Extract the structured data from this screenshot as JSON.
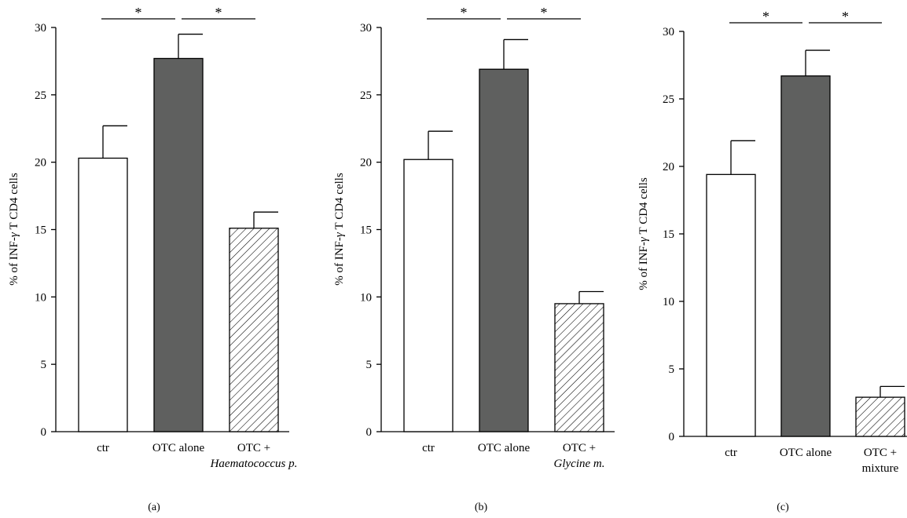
{
  "chart_data": [
    {
      "type": "bar",
      "panel_label": "(a)",
      "ylabel_main": "% of INF-",
      "ylabel_greek": "γ",
      "ylabel_rest": " T CD4 cells",
      "ylim": [
        0,
        30
      ],
      "yticks": [
        0,
        5,
        10,
        15,
        20,
        25,
        30
      ],
      "categories": [
        {
          "line1": "ctr",
          "line2": "",
          "line2_italic": false
        },
        {
          "line1": "OTC alone",
          "line2": "",
          "line2_italic": false
        },
        {
          "line1": "OTC +",
          "line2": "Haematococcus p.",
          "line2_italic": true
        }
      ],
      "values": [
        20.3,
        27.7,
        15.1
      ],
      "errors": [
        2.4,
        1.8,
        1.2
      ],
      "fills": [
        "white",
        "dark",
        "hatch"
      ],
      "significance": [
        {
          "from": 0,
          "to": 1,
          "label": "*"
        },
        {
          "from": 1,
          "to": 2,
          "label": "*"
        }
      ]
    },
    {
      "type": "bar",
      "panel_label": "(b)",
      "ylabel_main": "% of INF-",
      "ylabel_greek": "γ",
      "ylabel_rest": " T CD4 cells",
      "ylim": [
        0,
        30
      ],
      "yticks": [
        0,
        5,
        10,
        15,
        20,
        25,
        30
      ],
      "categories": [
        {
          "line1": "ctr",
          "line2": "",
          "line2_italic": false
        },
        {
          "line1": "OTC alone",
          "line2": "",
          "line2_italic": false
        },
        {
          "line1": "OTC +",
          "line2": "Glycine m.",
          "line2_italic": true
        }
      ],
      "values": [
        20.2,
        26.9,
        9.5
      ],
      "errors": [
        2.1,
        2.2,
        0.9
      ],
      "fills": [
        "white",
        "dark",
        "hatch"
      ],
      "significance": [
        {
          "from": 0,
          "to": 1,
          "label": "*"
        },
        {
          "from": 1,
          "to": 2,
          "label": "*"
        }
      ]
    },
    {
      "type": "bar",
      "panel_label": "(c)",
      "ylabel_main": "% of INF-",
      "ylabel_greek": "γ",
      "ylabel_rest": " T CD4 cells",
      "ylim": [
        0,
        30
      ],
      "yticks": [
        0,
        5,
        10,
        15,
        20,
        25,
        30
      ],
      "categories": [
        {
          "line1": "ctr",
          "line2": "",
          "line2_italic": false
        },
        {
          "line1": "OTC alone",
          "line2": "",
          "line2_italic": false
        },
        {
          "line1": "OTC +",
          "line2": "mixture",
          "line2_italic": false
        }
      ],
      "values": [
        19.4,
        26.7,
        2.9
      ],
      "errors": [
        2.5,
        1.9,
        0.8
      ],
      "fills": [
        "white",
        "dark",
        "hatch"
      ],
      "significance": [
        {
          "from": 0,
          "to": 1,
          "label": "*"
        },
        {
          "from": 1,
          "to": 2,
          "label": "*"
        }
      ]
    }
  ],
  "colors": {
    "dark_bar": "#5f605f",
    "white_bar": "#ffffff",
    "axis": "#000000"
  }
}
